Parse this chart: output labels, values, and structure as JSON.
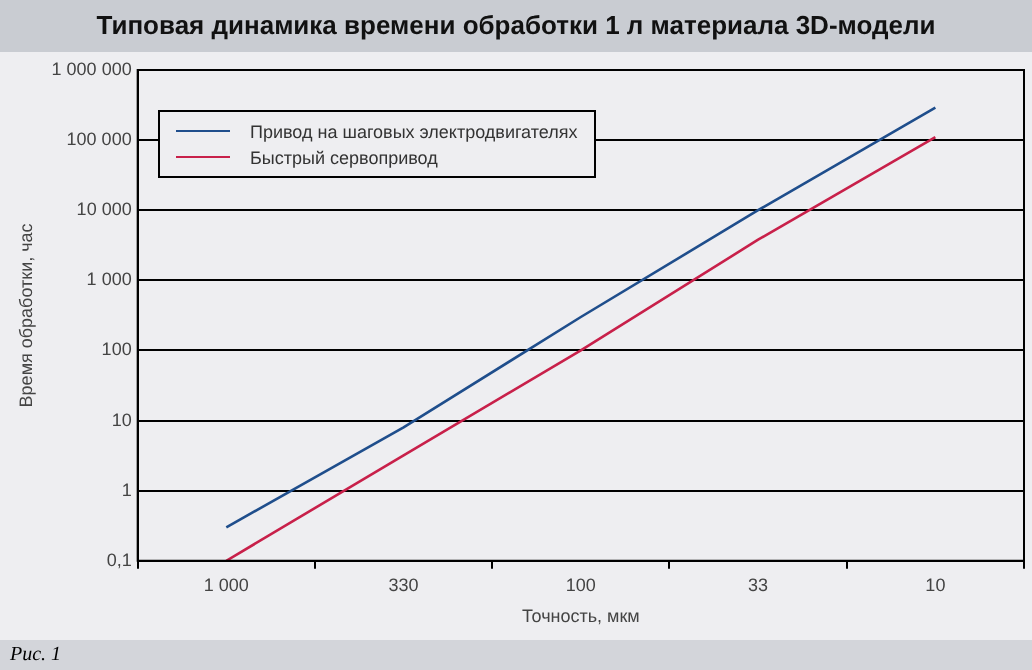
{
  "chart_data": {
    "type": "line",
    "title": "Типовая динамика времени обработки 1 л материала 3D-модели",
    "xlabel": "Точность, мкм",
    "ylabel": "Время обработки, час",
    "categories": [
      "1 000",
      "330",
      "100",
      "33",
      "10"
    ],
    "series": [
      {
        "name": "Привод на шаговых электродвигателях",
        "color": "#1f4e8c",
        "values": [
          0.3,
          8,
          300,
          10000,
          290000
        ]
      },
      {
        "name": "Быстрый сервопривод",
        "color": "#c8204a",
        "values": [
          0.1,
          3.2,
          100,
          3800,
          110000
        ]
      }
    ],
    "log": "y",
    "ylim": [
      0.1,
      1000000
    ],
    "yticks": [
      {
        "value": 0.1,
        "label": "0,1"
      },
      1,
      10,
      100,
      {
        "value": 1000,
        "label": "1 000"
      },
      {
        "value": 10000,
        "label": "10 000"
      },
      {
        "value": 100000,
        "label": "100 000"
      },
      {
        "value": 1000000,
        "label": "1 000 000"
      }
    ],
    "grid": "y",
    "legend": "top left",
    "marker": "none",
    "line_style": "solid",
    "annotations": [
      "Рис. 1"
    ]
  }
}
